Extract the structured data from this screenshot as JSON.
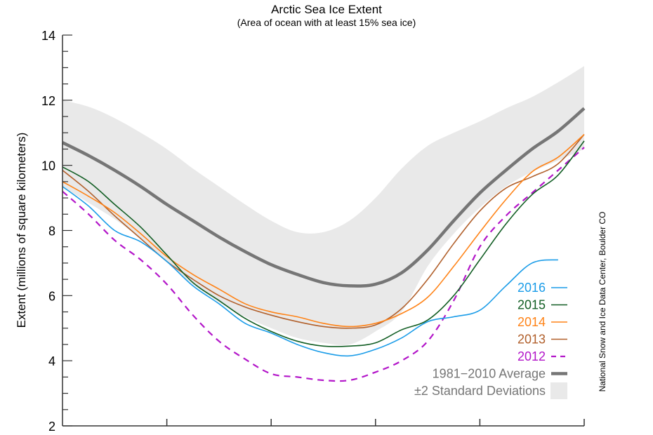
{
  "chart_data": {
    "type": "line",
    "title": "Arctic Sea Ice Extent",
    "subtitle": "(Area of ocean with at least 15% sea ice)",
    "xlabel": "",
    "ylabel": "Extent (millions of square kilometers)",
    "credit": "National Snow and Ice Data Center, Boulder CO",
    "ylim": [
      2,
      14
    ],
    "yticks": [
      2,
      4,
      6,
      8,
      10,
      12,
      14
    ],
    "yticks_minor_step": 0.5,
    "xlim": [
      0,
      5
    ],
    "xticks": [
      0,
      1,
      2,
      3,
      4,
      5
    ],
    "xtick_labels": [
      "",
      "",
      "",
      "",
      "",
      ""
    ],
    "grid": false,
    "legend_position": "bottom-right",
    "x": [
      0,
      0.25,
      0.5,
      0.75,
      1,
      1.25,
      1.5,
      1.75,
      2,
      2.25,
      2.5,
      2.75,
      3,
      3.25,
      3.5,
      3.75,
      4,
      4.25,
      4.5,
      4.75,
      5
    ],
    "band": {
      "name": "±2 Standard Deviations",
      "color": "#e9e9e9",
      "upper": [
        12.0,
        11.8,
        11.45,
        11.0,
        10.5,
        9.9,
        9.35,
        8.8,
        8.3,
        7.95,
        7.95,
        8.3,
        9.0,
        9.9,
        10.6,
        11.0,
        11.35,
        11.75,
        12.1,
        12.55,
        13.05
      ],
      "lower": [
        9.35,
        8.85,
        8.35,
        7.75,
        7.05,
        6.35,
        5.8,
        5.35,
        5.0,
        4.7,
        4.55,
        4.5,
        4.9,
        5.5,
        6.9,
        7.9,
        8.7,
        9.35,
        9.8,
        10.15,
        10.5
      ]
    },
    "series": [
      {
        "name": "1981–2010 Average",
        "color": "#767676",
        "style": "thick",
        "values": [
          10.7,
          10.3,
          9.85,
          9.35,
          8.8,
          8.3,
          7.8,
          7.35,
          6.95,
          6.65,
          6.4,
          6.3,
          6.35,
          6.7,
          7.4,
          8.3,
          9.15,
          9.85,
          10.5,
          11.05,
          11.75
        ]
      },
      {
        "name": "2016",
        "color": "#1a9ce8",
        "style": "solid",
        "values": [
          9.35,
          8.75,
          8.0,
          7.65,
          7.05,
          6.3,
          5.75,
          5.15,
          4.85,
          4.5,
          4.25,
          4.15,
          4.35,
          4.7,
          5.2,
          5.35,
          5.55,
          6.3,
          7.0,
          7.1,
          null
        ]
      },
      {
        "name": "2015",
        "color": "#125e24",
        "style": "solid",
        "values": [
          9.95,
          9.5,
          8.8,
          8.1,
          7.25,
          6.4,
          5.85,
          5.3,
          4.9,
          4.6,
          4.45,
          4.45,
          4.55,
          4.95,
          5.25,
          6.0,
          7.1,
          8.2,
          9.1,
          9.7,
          10.75
        ]
      },
      {
        "name": "2014",
        "color": "#ff8317",
        "style": "solid",
        "values": [
          9.5,
          9.05,
          8.55,
          7.9,
          7.2,
          6.65,
          6.2,
          5.75,
          5.5,
          5.35,
          5.15,
          5.05,
          5.15,
          5.45,
          5.95,
          6.9,
          7.95,
          8.95,
          9.8,
          10.25,
          10.95
        ]
      },
      {
        "name": "2013",
        "color": "#b1602c",
        "style": "solid",
        "values": [
          9.85,
          9.2,
          8.45,
          7.75,
          7.05,
          6.5,
          6.0,
          5.65,
          5.4,
          5.2,
          5.05,
          5.0,
          5.1,
          5.6,
          6.5,
          7.6,
          8.6,
          9.3,
          9.65,
          10.05,
          10.95
        ]
      },
      {
        "name": "2012",
        "color": "#b316c9",
        "style": "dashed",
        "values": [
          9.2,
          8.5,
          7.7,
          7.1,
          6.35,
          5.4,
          4.6,
          4.05,
          3.6,
          3.5,
          3.4,
          3.4,
          3.65,
          4.0,
          4.6,
          5.85,
          7.5,
          8.45,
          9.15,
          9.85,
          10.55
        ]
      }
    ],
    "legend": [
      {
        "label": "2016",
        "color": "#1a9ce8",
        "swatch": "line"
      },
      {
        "label": "2015",
        "color": "#125e24",
        "swatch": "line"
      },
      {
        "label": "2014",
        "color": "#ff8317",
        "swatch": "line"
      },
      {
        "label": "2013",
        "color": "#b1602c",
        "swatch": "line"
      },
      {
        "label": "2012",
        "color": "#b316c9",
        "swatch": "dashed"
      },
      {
        "label": "1981−2010 Average",
        "color": "#767676",
        "swatch": "thick"
      },
      {
        "label": "±2 Standard Deviations",
        "color": "#767676",
        "swatch": "box"
      }
    ]
  }
}
